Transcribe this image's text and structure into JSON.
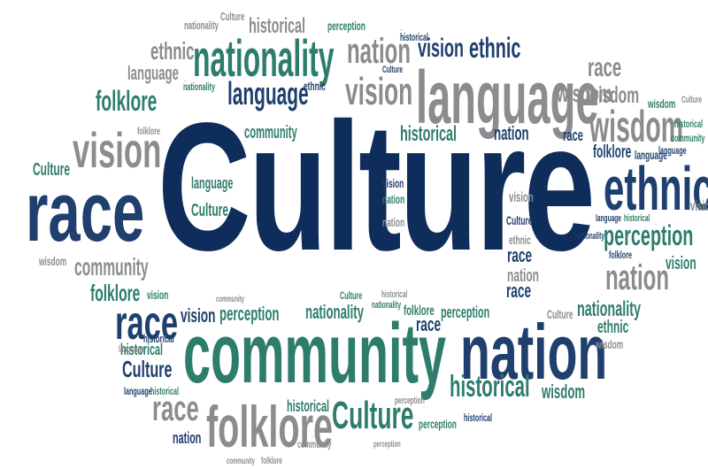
{
  "colors": {
    "navy": "#1f3f6e",
    "dark_navy": "#0f2d5a",
    "teal": "#2e7d6b",
    "gray": "#8a8c8e",
    "light_gray": "#a4a6a8",
    "background": "#ffffff"
  },
  "words": [
    "Culture",
    "community",
    "nation",
    "language",
    "race",
    "ethnic",
    "nationality",
    "folklore",
    "vision",
    "wisdom",
    "perception",
    "historical",
    "race",
    "nation",
    "vision",
    "ethnic",
    "language",
    "nationality",
    "wisdom",
    "folklore",
    "Culture",
    "historical",
    "race",
    "Culture",
    "folklore",
    "nation",
    "community",
    "vision",
    "wisdom",
    "language",
    "Culture",
    "race",
    "community",
    "historical",
    "ethnic",
    "perception",
    "nation",
    "vision",
    "nationality",
    "perception",
    "nation",
    "historical",
    "wisdom",
    "race",
    "vision",
    "perception",
    "Culture",
    "historical",
    "folklore",
    "perception",
    "ethnic",
    "Culture",
    "historical",
    "Culture",
    "nationality",
    "historical",
    "perception",
    "vision",
    "nation",
    "nationality",
    "historical",
    "ethnic",
    "race",
    "language",
    "language",
    "folklore",
    "Culture",
    "wisdom",
    "community",
    "Culture",
    "folklore",
    "nation",
    "wisdom",
    "vision",
    "nationality",
    "language",
    "historical",
    "Culture",
    "historical",
    "nationality",
    "language",
    "folklore",
    "ethnic",
    "community",
    "language",
    "vision",
    "wisdom",
    "Culture",
    "nationality",
    "perception",
    "language",
    "historical",
    "folklore",
    "language",
    "historical",
    "nation",
    "historical",
    "vision",
    "nation",
    "Culture",
    "ethnic",
    "historical",
    "nationality",
    "perception",
    "language",
    "historical",
    "community",
    "vision",
    "vision",
    "race",
    "race",
    "nation",
    "nation",
    "community",
    "community",
    "folklore",
    "perception",
    "nationality",
    "race",
    "community"
  ]
}
